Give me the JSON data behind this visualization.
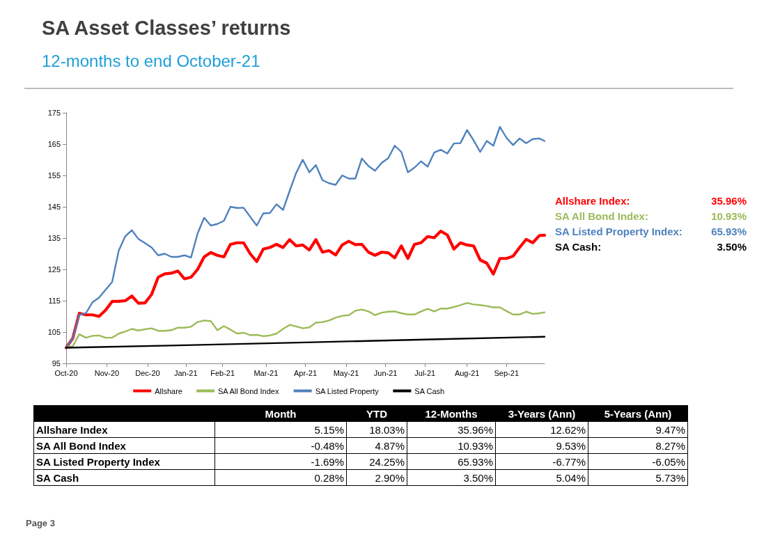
{
  "chart_data": [
    {
      "type": "line",
      "title": "SA Asset Classes’ returns",
      "subtitle": "12-months to end October-21",
      "x": [
        "2020-10-30",
        "2020-11-04",
        "2020-11-09",
        "2020-11-14",
        "2020-11-19",
        "2020-11-24",
        "2020-11-29",
        "2020-12-04",
        "2020-12-09",
        "2020-12-14",
        "2020-12-19",
        "2020-12-24",
        "2020-12-29",
        "2021-01-03",
        "2021-01-08",
        "2021-01-13",
        "2021-01-18",
        "2021-01-23",
        "2021-01-28",
        "2021-02-02",
        "2021-02-07",
        "2021-02-12",
        "2021-02-17",
        "2021-02-22",
        "2021-02-27",
        "2021-03-04",
        "2021-03-09",
        "2021-03-14",
        "2021-03-19",
        "2021-03-24",
        "2021-03-29",
        "2021-04-03",
        "2021-04-08",
        "2021-04-13",
        "2021-04-18",
        "2021-04-23",
        "2021-04-28",
        "2021-05-03",
        "2021-05-08",
        "2021-05-13",
        "2021-05-18",
        "2021-05-23",
        "2021-05-28",
        "2021-06-02",
        "2021-06-07",
        "2021-06-12",
        "2021-06-17",
        "2021-06-22",
        "2021-06-27",
        "2021-07-02",
        "2021-07-07",
        "2021-07-12",
        "2021-07-17",
        "2021-07-22",
        "2021-07-27",
        "2021-08-01",
        "2021-08-06",
        "2021-08-11",
        "2021-08-16",
        "2021-08-21",
        "2021-08-26",
        "2021-08-31",
        "2021-09-05",
        "2021-09-10",
        "2021-09-15",
        "2021-09-20",
        "2021-09-25",
        "2021-09-30",
        "2021-10-05",
        "2021-10-10",
        "2021-10-15",
        "2021-10-20",
        "2021-10-25",
        "2021-10-29"
      ],
      "series": [
        {
          "name": "Allshare",
          "color": "#ff0000",
          "values": [
            100,
            103,
            111,
            110.5,
            110.5,
            110,
            112,
            114.8,
            114.8,
            115,
            116.5,
            114.2,
            114.3,
            117,
            122.5,
            123.6,
            123.8,
            124.5,
            122,
            122.5,
            125,
            129,
            130.4,
            129.5,
            129,
            133,
            133.5,
            133.5,
            130,
            127.5,
            131.5,
            132,
            133,
            132,
            134.5,
            132.5,
            132.8,
            131.2,
            134.5,
            130.5,
            131,
            129.6,
            132.8,
            134,
            132.9,
            133,
            130.5,
            129.5,
            130.5,
            130.3,
            128.7,
            132.5,
            128.5,
            133,
            133.5,
            135.5,
            135.1,
            137.2,
            136,
            131.5,
            133.5,
            132.8,
            132.5,
            128,
            127,
            123.5,
            128.5,
            128.5,
            129.2,
            132,
            134.6,
            133.5,
            135.8,
            135.9
          ]
        },
        {
          "name": "SA All Bond Index",
          "color": "#9bbb59",
          "values": [
            100,
            100.5,
            104.3,
            103.2,
            103.8,
            103.9,
            103.2,
            103.2,
            104.5,
            105.2,
            106,
            105.5,
            105.9,
            106.2,
            105.4,
            105.4,
            105.6,
            106.4,
            106.4,
            106.7,
            108.2,
            108.7,
            108.5,
            105.6,
            106.9,
            105.8,
            104.5,
            104.8,
            104,
            104.1,
            103.7,
            103.9,
            104.5,
            106,
            107.3,
            106.8,
            106.2,
            106.5,
            108,
            108.2,
            108.7,
            109.6,
            110.2,
            110.4,
            111.8,
            112.2,
            111.6,
            110.4,
            111.2,
            111.5,
            111.6,
            111,
            110.6,
            110.6,
            111.6,
            112.4,
            111.6,
            112.5,
            112.5,
            113,
            113.6,
            114.3,
            113.8,
            113.6,
            113.3,
            112.9,
            112.9,
            111.7,
            110.6,
            110.6,
            111.5,
            110.8,
            111,
            111.3
          ]
        },
        {
          "name": "SA Listed Property",
          "color": "#4f81bd",
          "values": [
            100,
            103,
            110.5,
            111,
            114.5,
            116,
            118.5,
            121,
            131,
            135.6,
            137.5,
            134.7,
            133.4,
            132,
            129.5,
            130,
            129,
            129,
            129.5,
            128.8,
            136.5,
            141.5,
            139,
            139.5,
            140.5,
            145,
            144.6,
            144.7,
            141.8,
            139,
            142.9,
            143,
            145.8,
            144,
            150,
            155.8,
            160,
            156,
            158.3,
            153.5,
            152.5,
            152,
            155,
            154,
            154,
            160.4,
            158,
            156.5,
            159,
            160.5,
            164.5,
            162.5,
            156,
            157.5,
            159.5,
            157.8,
            162.3,
            163.2,
            162,
            165.2,
            165.3,
            169.5,
            166.2,
            162.5,
            166,
            164.5,
            170.5,
            167,
            164.7,
            166.8,
            165.3,
            166.6,
            166.8,
            166
          ]
        },
        {
          "name": "SA Cash",
          "color": "#000000",
          "x": [
            "2020-10-30",
            "2021-01-29",
            "2021-04-30",
            "2021-07-30",
            "2021-10-29"
          ],
          "values": [
            100,
            100.8,
            101.7,
            102.6,
            103.5
          ]
        }
      ],
      "xlim": [
        "2020-10-30",
        "2021-10-29"
      ],
      "xticks": [
        {
          "value": "2020-10-30",
          "label": "Oct-20"
        },
        {
          "value": "2020-11-30",
          "label": "Nov-20"
        },
        {
          "value": "2020-12-31",
          "label": "Dec-20"
        },
        {
          "value": "2021-01-29",
          "label": "Jan-21"
        },
        {
          "value": "2021-02-26",
          "label": "Feb-21"
        },
        {
          "value": "2021-03-31",
          "label": "Mar-21"
        },
        {
          "value": "2021-04-30",
          "label": "Apr-21"
        },
        {
          "value": "2021-05-31",
          "label": "May-21"
        },
        {
          "value": "2021-06-30",
          "label": "Jun-21"
        },
        {
          "value": "2021-07-30",
          "label": "Jul-21"
        },
        {
          "value": "2021-08-31",
          "label": "Aug-21"
        },
        {
          "value": "2021-09-30",
          "label": "Sep-21"
        }
      ],
      "ylim": [
        95,
        175
      ],
      "yticks": [
        95,
        105,
        115,
        125,
        135,
        145,
        155,
        165,
        175
      ],
      "grid": false,
      "legend": "bottom",
      "annotations": [
        "Allshare Index: 35.96%",
        "SA All Bond Index: 10.93%",
        "SA Listed Property Index: 65.93%",
        "SA Cash: 3.50%"
      ]
    },
    {
      "type": "other",
      "categories": [
        "Month",
        "YTD",
        "12-Months",
        "3-Years (Ann)",
        "5-Years (Ann)"
      ],
      "y_categories": [
        "Allshare Index",
        "SA All Bond Index",
        "SA Listed Property Index",
        "SA Cash"
      ],
      "cells": [
        [
          "5.15%",
          "18.03%",
          "35.96%",
          "12.62%",
          "9.47%"
        ],
        [
          "-0.48%",
          "4.87%",
          "10.93%",
          "9.53%",
          "8.27%"
        ],
        [
          "-1.69%",
          "24.25%",
          "65.93%",
          "-6.77%",
          "-6.05%"
        ],
        [
          "0.28%",
          "2.90%",
          "3.50%",
          "5.04%",
          "5.73%"
        ]
      ],
      "annotations": [
        "Page 3"
      ]
    }
  ]
}
